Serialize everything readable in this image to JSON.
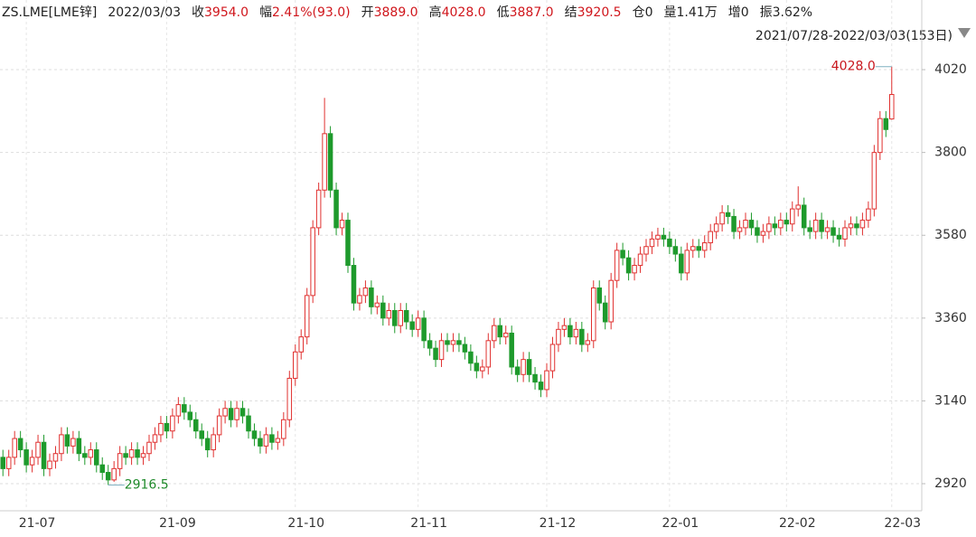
{
  "header": {
    "symbol": "ZS.LME[LME锌]",
    "date": "2022/03/03",
    "fields": [
      {
        "label": "收",
        "value": "3954.0",
        "color": "#d0161c"
      },
      {
        "label": "幅",
        "value": "2.41%(93.0)",
        "color": "#d0161c"
      },
      {
        "label": "开",
        "value": "3889.0",
        "color": "#d0161c"
      },
      {
        "label": "高",
        "value": "4028.0",
        "color": "#d0161c"
      },
      {
        "label": "低",
        "value": "3887.0",
        "color": "#d0161c"
      },
      {
        "label": "结",
        "value": "3920.5",
        "color": "#d0161c"
      },
      {
        "label": "仓",
        "value": "0",
        "color": "#222222"
      },
      {
        "label": "量",
        "value": "1.41万",
        "color": "#222222"
      },
      {
        "label": "增",
        "value": "0",
        "color": "#222222"
      },
      {
        "label": "振",
        "value": "3.62%",
        "color": "#222222"
      }
    ],
    "range": "2021/07/28-2022/03/03(153日)"
  },
  "chart_data": {
    "type": "candlestick",
    "categories": [
      null,
      null,
      null,
      null,
      "21-07",
      null,
      null,
      null,
      null,
      null,
      null,
      null,
      null,
      null,
      null,
      null,
      null,
      null,
      null,
      null,
      null,
      null,
      null,
      null,
      null,
      null,
      null,
      null,
      "21-09",
      null,
      null,
      null,
      null,
      null,
      null,
      null,
      null,
      null,
      null,
      null,
      null,
      null,
      null,
      null,
      null,
      null,
      null,
      null,
      null,
      null,
      "21-10",
      null,
      null,
      null,
      null,
      null,
      null,
      null,
      null,
      null,
      null,
      null,
      null,
      null,
      null,
      null,
      null,
      null,
      null,
      null,
      null,
      "21-11",
      null,
      null,
      null,
      null,
      null,
      null,
      null,
      null,
      null,
      null,
      null,
      null,
      null,
      null,
      null,
      null,
      null,
      null,
      null,
      null,
      null,
      "21-12",
      null,
      null,
      null,
      null,
      null,
      null,
      null,
      null,
      null,
      null,
      null,
      null,
      null,
      null,
      null,
      null,
      null,
      null,
      null,
      null,
      "22-01",
      null,
      null,
      null,
      null,
      null,
      null,
      null,
      null,
      null,
      null,
      null,
      null,
      null,
      null,
      null,
      null,
      null,
      null,
      null,
      "22-02",
      null,
      null,
      null,
      null,
      null,
      null,
      null,
      null,
      null,
      null,
      null,
      null,
      null,
      null,
      null,
      null,
      null,
      "22-03"
    ],
    "open": [
      2990,
      2960,
      2990,
      3040,
      3010,
      2970,
      2990,
      3030,
      2960,
      2980,
      3000,
      3050,
      3020,
      3040,
      3000,
      2990,
      3010,
      2970,
      2950,
      2930,
      2960,
      3000,
      2990,
      3010,
      2990,
      3000,
      3030,
      3050,
      3080,
      3060,
      3100,
      3130,
      3110,
      3090,
      3060,
      3040,
      3010,
      3050,
      3100,
      3120,
      3090,
      3120,
      3100,
      3060,
      3040,
      3020,
      3050,
      3030,
      3040,
      3090,
      3200,
      3270,
      3310,
      3420,
      3600,
      3700,
      3850,
      3700,
      3600,
      3620,
      3500,
      3400,
      3420,
      3440,
      3390,
      3400,
      3360,
      3380,
      3340,
      3380,
      3350,
      3330,
      3360,
      3300,
      3280,
      3250,
      3300,
      3290,
      3300,
      3290,
      3270,
      3240,
      3220,
      3230,
      3300,
      3340,
      3310,
      3320,
      3230,
      3210,
      3250,
      3210,
      3190,
      3170,
      3220,
      3290,
      3330,
      3340,
      3310,
      3330,
      3290,
      3300,
      3440,
      3400,
      3350,
      3460,
      3540,
      3520,
      3480,
      3500,
      3530,
      3550,
      3570,
      3580,
      3570,
      3550,
      3530,
      3480,
      3540,
      3550,
      3540,
      3560,
      3590,
      3610,
      3640,
      3630,
      3590,
      3600,
      3620,
      3600,
      3580,
      3590,
      3610,
      3600,
      3620,
      3610,
      3650,
      3660,
      3600,
      3590,
      3620,
      3590,
      3600,
      3580,
      3570,
      3600,
      3610,
      3600,
      3620,
      3650,
      3800,
      3890,
      3889
    ],
    "high": [
      3010,
      3010,
      3060,
      3060,
      3030,
      3010,
      3050,
      3050,
      3000,
      3020,
      3070,
      3070,
      3060,
      3060,
      3020,
      3030,
      3030,
      2990,
      2970,
      2980,
      3020,
      3020,
      3030,
      3030,
      3020,
      3050,
      3070,
      3100,
      3100,
      3120,
      3150,
      3150,
      3130,
      3110,
      3080,
      3060,
      3070,
      3120,
      3140,
      3140,
      3140,
      3140,
      3120,
      3080,
      3060,
      3070,
      3070,
      3060,
      3110,
      3220,
      3290,
      3330,
      3440,
      3620,
      3720,
      3945,
      3870,
      3720,
      3640,
      3640,
      3520,
      3440,
      3460,
      3460,
      3420,
      3420,
      3400,
      3400,
      3400,
      3400,
      3370,
      3380,
      3380,
      3320,
      3300,
      3320,
      3320,
      3320,
      3320,
      3310,
      3290,
      3260,
      3250,
      3320,
      3360,
      3360,
      3340,
      3340,
      3250,
      3270,
      3270,
      3230,
      3210,
      3240,
      3310,
      3350,
      3360,
      3360,
      3350,
      3350,
      3320,
      3460,
      3460,
      3420,
      3480,
      3560,
      3560,
      3540,
      3520,
      3550,
      3570,
      3590,
      3600,
      3600,
      3590,
      3570,
      3550,
      3560,
      3570,
      3570,
      3580,
      3610,
      3630,
      3660,
      3660,
      3650,
      3620,
      3640,
      3640,
      3620,
      3610,
      3630,
      3630,
      3640,
      3640,
      3670,
      3710,
      3680,
      3620,
      3640,
      3640,
      3620,
      3620,
      3600,
      3620,
      3630,
      3630,
      3640,
      3670,
      3820,
      3910,
      3910,
      4028
    ],
    "low": [
      2940,
      2940,
      2970,
      2990,
      2950,
      2950,
      2970,
      2940,
      2940,
      2960,
      2980,
      3000,
      3000,
      2980,
      2970,
      2970,
      2950,
      2930,
      2916.5,
      2925,
      2940,
      2970,
      2970,
      2970,
      2970,
      2980,
      3010,
      3030,
      3040,
      3040,
      3080,
      3090,
      3070,
      3040,
      3020,
      2990,
      2990,
      3030,
      3080,
      3070,
      3070,
      3080,
      3040,
      3020,
      3000,
      3000,
      3010,
      3010,
      3020,
      3070,
      3180,
      3250,
      3290,
      3400,
      3580,
      3680,
      3680,
      3580,
      3580,
      3480,
      3380,
      3380,
      3400,
      3370,
      3370,
      3340,
      3340,
      3320,
      3320,
      3330,
      3310,
      3310,
      3280,
      3260,
      3230,
      3230,
      3270,
      3270,
      3270,
      3250,
      3220,
      3200,
      3200,
      3210,
      3280,
      3290,
      3290,
      3210,
      3190,
      3190,
      3190,
      3170,
      3150,
      3150,
      3200,
      3270,
      3310,
      3290,
      3290,
      3270,
      3270,
      3280,
      3380,
      3330,
      3330,
      3440,
      3500,
      3460,
      3460,
      3480,
      3510,
      3530,
      3550,
      3550,
      3530,
      3510,
      3460,
      3460,
      3520,
      3520,
      3520,
      3540,
      3570,
      3590,
      3610,
      3570,
      3570,
      3580,
      3580,
      3560,
      3560,
      3570,
      3580,
      3580,
      3590,
      3590,
      3630,
      3580,
      3570,
      3570,
      3570,
      3570,
      3560,
      3550,
      3550,
      3580,
      3580,
      3580,
      3600,
      3630,
      3780,
      3841,
      3887
    ],
    "close": [
      2960,
      2990,
      3040,
      3010,
      2970,
      2990,
      3030,
      2960,
      2980,
      3000,
      3050,
      3020,
      3040,
      3000,
      2990,
      3010,
      2970,
      2950,
      2930,
      2960,
      3000,
      2990,
      3010,
      2990,
      3000,
      3030,
      3050,
      3080,
      3060,
      3100,
      3130,
      3110,
      3090,
      3060,
      3040,
      3010,
      3050,
      3100,
      3120,
      3090,
      3120,
      3100,
      3060,
      3040,
      3020,
      3050,
      3030,
      3040,
      3090,
      3200,
      3270,
      3310,
      3420,
      3600,
      3700,
      3850,
      3700,
      3600,
      3620,
      3500,
      3400,
      3420,
      3440,
      3390,
      3400,
      3360,
      3380,
      3340,
      3380,
      3350,
      3330,
      3360,
      3300,
      3280,
      3250,
      3300,
      3290,
      3300,
      3290,
      3270,
      3240,
      3220,
      3230,
      3300,
      3340,
      3310,
      3320,
      3230,
      3210,
      3250,
      3210,
      3190,
      3170,
      3220,
      3290,
      3330,
      3340,
      3310,
      3330,
      3290,
      3300,
      3440,
      3400,
      3350,
      3460,
      3540,
      3520,
      3480,
      3500,
      3530,
      3550,
      3570,
      3580,
      3570,
      3550,
      3530,
      3480,
      3540,
      3550,
      3540,
      3560,
      3590,
      3610,
      3640,
      3630,
      3590,
      3600,
      3620,
      3600,
      3580,
      3590,
      3610,
      3600,
      3620,
      3610,
      3650,
      3660,
      3600,
      3590,
      3620,
      3590,
      3600,
      3580,
      3570,
      3600,
      3610,
      3600,
      3620,
      3650,
      3800,
      3890,
      3861,
      3954
    ],
    "up_color": "#e0302f",
    "down_color": "#1e9a2c",
    "high_label": "4028.0",
    "low_label": "2916.5",
    "ylim": [
      2848,
      4109
    ],
    "yticks": [
      2920,
      3140,
      3360,
      3580,
      3800,
      4020
    ],
    "grid": true
  }
}
